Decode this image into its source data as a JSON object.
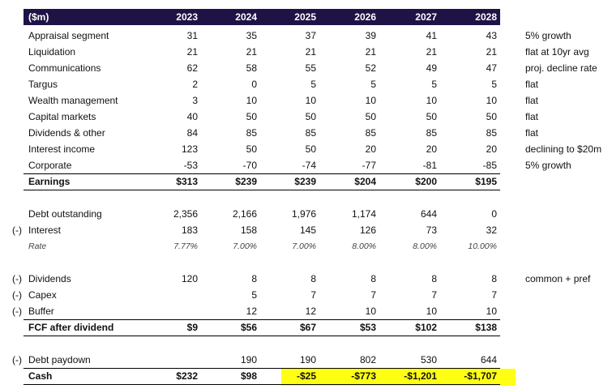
{
  "header": {
    "label": "($m)",
    "years": [
      "2023",
      "2024",
      "2025",
      "2026",
      "2027",
      "2028"
    ]
  },
  "segments": [
    {
      "label": "Appraisal segment",
      "values": [
        "31",
        "35",
        "37",
        "39",
        "41",
        "43"
      ],
      "note": "5% growth"
    },
    {
      "label": "Liquidation",
      "values": [
        "21",
        "21",
        "21",
        "21",
        "21",
        "21"
      ],
      "note": "flat at 10yr avg"
    },
    {
      "label": "Communications",
      "values": [
        "62",
        "58",
        "55",
        "52",
        "49",
        "47"
      ],
      "note": "proj. decline rate"
    },
    {
      "label": "Targus",
      "values": [
        "2",
        "0",
        "5",
        "5",
        "5",
        "5"
      ],
      "note": "flat"
    },
    {
      "label": "Wealth management",
      "values": [
        "3",
        "10",
        "10",
        "10",
        "10",
        "10"
      ],
      "note": "flat"
    },
    {
      "label": "Capital markets",
      "values": [
        "40",
        "50",
        "50",
        "50",
        "50",
        "50"
      ],
      "note": "flat"
    },
    {
      "label": "Dividends & other",
      "values": [
        "84",
        "85",
        "85",
        "85",
        "85",
        "85"
      ],
      "note": "flat"
    },
    {
      "label": "Interest income",
      "values": [
        "123",
        "50",
        "50",
        "20",
        "20",
        "20"
      ],
      "note": "declining to $20m"
    },
    {
      "label": "Corporate",
      "values": [
        "-53",
        "-70",
        "-74",
        "-77",
        "-81",
        "-85"
      ],
      "note": "5% growth"
    }
  ],
  "earnings": {
    "label": "Earnings",
    "values": [
      "$313",
      "$239",
      "$239",
      "$204",
      "$200",
      "$195"
    ]
  },
  "debt": [
    {
      "prefix": "",
      "label": "Debt outstanding",
      "values": [
        "2,356",
        "2,166",
        "1,976",
        "1,174",
        "644",
        "0"
      ]
    },
    {
      "prefix": "(-)",
      "label": "Interest",
      "values": [
        "183",
        "158",
        "145",
        "126",
        "73",
        "32"
      ]
    }
  ],
  "rate": {
    "label": "Rate",
    "values": [
      "7.77%",
      "7.00%",
      "7.00%",
      "8.00%",
      "8.00%",
      "10.00%"
    ]
  },
  "uses": [
    {
      "prefix": "(-)",
      "label": "Dividends",
      "values": [
        "120",
        "8",
        "8",
        "8",
        "8",
        "8"
      ],
      "note": "common + pref"
    },
    {
      "prefix": "(-)",
      "label": "Capex",
      "values": [
        "",
        "5",
        "7",
        "7",
        "7",
        "7"
      ],
      "note": ""
    },
    {
      "prefix": "(-)",
      "label": "Buffer",
      "values": [
        "",
        "12",
        "12",
        "10",
        "10",
        "10"
      ],
      "note": ""
    }
  ],
  "fcf": {
    "label": "FCF after dividend",
    "values": [
      "$9",
      "$56",
      "$67",
      "$53",
      "$102",
      "$138"
    ]
  },
  "paydown": {
    "prefix": "(-)",
    "label": "Debt paydown",
    "values": [
      "",
      "190",
      "190",
      "802",
      "530",
      "644"
    ]
  },
  "cash": {
    "label": "Cash",
    "values": [
      "$232",
      "$98",
      "-$25",
      "-$773",
      "-$1,201",
      "-$1,707"
    ]
  },
  "colors": {
    "header_bg": "#1f1346",
    "highlight": "#ffff14"
  }
}
